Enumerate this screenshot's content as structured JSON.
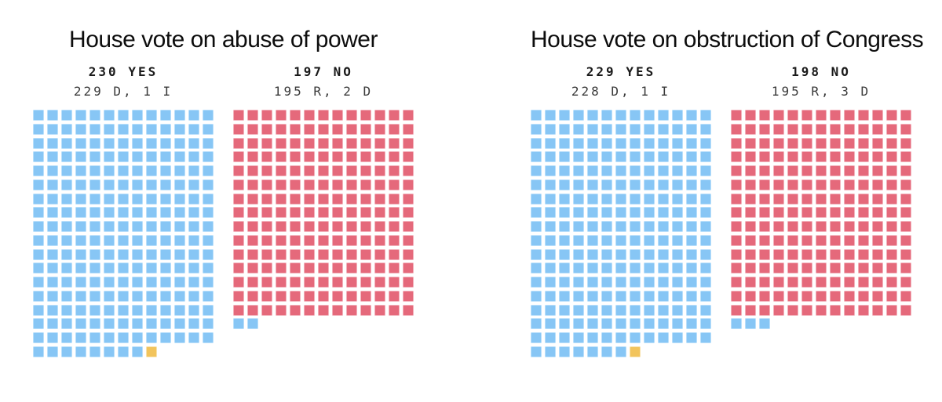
{
  "page": {
    "background": "#ffffff"
  },
  "colors": {
    "democrat": "#87C6F5",
    "democrat_border": "#B9DFFB",
    "republican": "#E5697B",
    "republican_border": "#F2B0BA",
    "independent": "#F2C45C",
    "independent_border": "#F8E2AC",
    "title_text": "#0d0d0d",
    "headline_text": "#1a1a1a",
    "subhead_text": "#3a3a3a"
  },
  "chart_data": [
    {
      "type": "waffle",
      "title": "House vote on abuse of power",
      "grid_columns": 13,
      "legend_position": "none",
      "groups": [
        {
          "id": "yes",
          "headline": "230 YES",
          "subhead": "229 D, 1 I",
          "total": 230,
          "segments": [
            {
              "party": "Democrat",
              "color_key": "democrat",
              "count": 229
            },
            {
              "party": "Independent",
              "color_key": "independent",
              "count": 1
            }
          ]
        },
        {
          "id": "no",
          "headline": "197 NO",
          "subhead": "195 R, 2 D",
          "total": 197,
          "segments": [
            {
              "party": "Republican",
              "color_key": "republican",
              "count": 195
            },
            {
              "party": "Democrat",
              "color_key": "democrat",
              "count": 2
            }
          ]
        }
      ]
    },
    {
      "type": "waffle",
      "title": "House vote on obstruction of Congress",
      "grid_columns": 13,
      "legend_position": "none",
      "groups": [
        {
          "id": "yes",
          "headline": "229 YES",
          "subhead": "228 D, 1 I",
          "total": 229,
          "segments": [
            {
              "party": "Democrat",
              "color_key": "democrat",
              "count": 228
            },
            {
              "party": "Independent",
              "color_key": "independent",
              "count": 1
            }
          ]
        },
        {
          "id": "no",
          "headline": "198 NO",
          "subhead": "195 R, 3 D",
          "total": 198,
          "segments": [
            {
              "party": "Republican",
              "color_key": "republican",
              "count": 195
            },
            {
              "party": "Democrat",
              "color_key": "democrat",
              "count": 3
            }
          ]
        }
      ]
    }
  ]
}
